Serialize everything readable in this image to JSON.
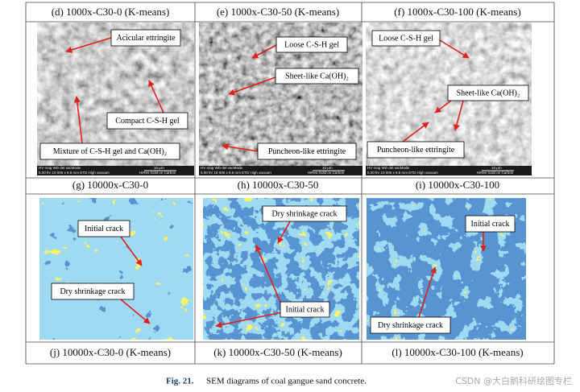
{
  "captions_top": [
    "(d) 1000x-C30-0 (K-means)",
    "(e) 1000x-C30-50 (K-means)",
    "(f) 1000x-C30-100 (K-means)"
  ],
  "sem_panels": [
    {
      "labels": [
        "Acicular ettringite",
        "Compact C-S-H gel",
        "Mixture of C-S-H gel and Ca(OH)₂"
      ]
    },
    {
      "labels": [
        "Loose C-S-H gel",
        "Sheet-like Ca(OH)₂",
        "Puncheon-like ettringite"
      ]
    },
    {
      "labels": [
        "Loose C-S-H gel",
        "Sheet-like Ca(OH)₂",
        "Puncheon-like ettringite"
      ]
    }
  ],
  "sem_info": {
    "header": "HV   mag   WD   det   vacMode",
    "settings": "5.00 kV  10 000 x  9.8 mm  ETD  High vacuum",
    "scale": "10 μm",
    "coating": "HiRes Gold on Carbon"
  },
  "captions_middle": [
    "(g) 10000x-C30-0",
    "(h) 10000x-C30-50",
    "(i) 10000x-C30-100"
  ],
  "kmeans_panels": [
    {
      "labels": [
        "Initial crack",
        "Dry shrinkage crack"
      ]
    },
    {
      "labels": [
        "Dry shrinkage crack",
        "Initial crack"
      ]
    },
    {
      "labels": [
        "Initial crack",
        "Dry shrinkage crack"
      ]
    }
  ],
  "captions_bottom": [
    "(j) 10000x-C30-0 (K-means)",
    "(k) 10000x-C30-50 (K-means)",
    "(l) 10000x-C30-100 (K-means)"
  ],
  "figure_caption": {
    "label": "Fig. 21.",
    "text": "SEM diagrams of coal gangue sand concrete."
  },
  "watermark": "CSDN @大白鹅科研绘图专栏"
}
